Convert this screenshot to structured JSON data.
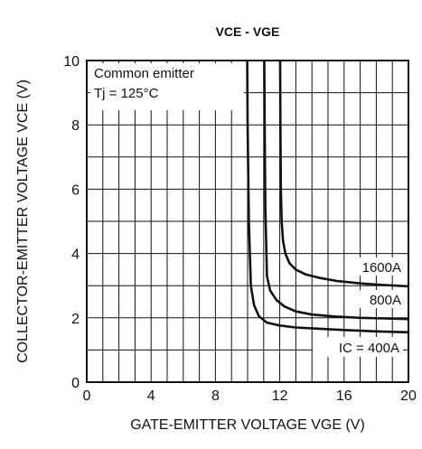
{
  "chart_data": {
    "type": "line",
    "title": "VCE - VGE",
    "xlabel": "GATE-EMITTER VOLTAGE  VGE (V)",
    "ylabel": "COLLECTOR-EMITTER VOLTAGE  VCE (V)",
    "xlim": [
      0,
      20
    ],
    "ylim": [
      0,
      10
    ],
    "xticks": [
      "0",
      "4",
      "8",
      "12",
      "16",
      "20"
    ],
    "yticks": [
      "0",
      "2",
      "4",
      "6",
      "8",
      "10"
    ],
    "grid": true,
    "annotations": [
      "Common emitter",
      "Tj = 125°C"
    ],
    "series": [
      {
        "name": "IC = 400A",
        "x": [
          9.98,
          10.0,
          10.08,
          10.2,
          10.4,
          10.7,
          11.2,
          12.0,
          13.0,
          14.5,
          16.0,
          18.0,
          20.0
        ],
        "y": [
          10.0,
          8.0,
          5.0,
          3.0,
          2.4,
          2.05,
          1.85,
          1.76,
          1.7,
          1.66,
          1.62,
          1.58,
          1.55
        ]
      },
      {
        "name": "800A",
        "x": [
          11.04,
          11.06,
          11.1,
          11.2,
          11.4,
          11.8,
          12.3,
          13.0,
          14.0,
          15.5,
          17.0,
          18.5,
          20.0
        ],
        "y": [
          10.0,
          8.0,
          5.5,
          3.3,
          2.85,
          2.55,
          2.35,
          2.2,
          2.1,
          2.04,
          2.0,
          1.98,
          1.96
        ]
      },
      {
        "name": "1600A",
        "x": [
          12.02,
          12.04,
          12.07,
          12.12,
          12.2,
          12.35,
          12.6,
          13.0,
          13.6,
          14.4,
          15.5,
          17.0,
          18.5,
          20.0
        ],
        "y": [
          10.0,
          8.0,
          6.0,
          5.0,
          4.4,
          4.0,
          3.7,
          3.5,
          3.35,
          3.25,
          3.15,
          3.07,
          3.02,
          2.98
        ]
      }
    ]
  }
}
